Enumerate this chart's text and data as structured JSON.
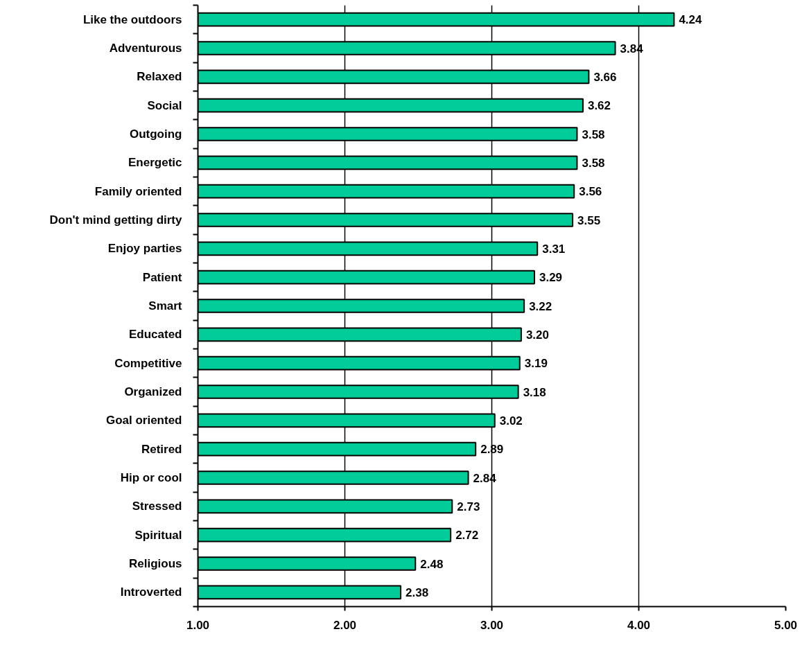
{
  "chart_data": {
    "type": "bar",
    "orientation": "horizontal",
    "categories": [
      "Like the outdoors",
      "Adventurous",
      "Relaxed",
      "Social",
      "Outgoing",
      "Energetic",
      "Family oriented",
      "Don't mind getting dirty",
      "Enjoy parties",
      "Patient",
      "Smart",
      "Educated",
      "Competitive",
      "Organized",
      "Goal oriented",
      "Retired",
      "Hip or cool",
      "Stressed",
      "Spiritual",
      "Religious",
      "Introverted"
    ],
    "values": [
      4.24,
      3.84,
      3.66,
      3.62,
      3.58,
      3.58,
      3.56,
      3.55,
      3.31,
      3.29,
      3.22,
      3.2,
      3.19,
      3.18,
      3.02,
      2.89,
      2.84,
      2.73,
      2.72,
      2.48,
      2.38
    ],
    "value_labels": [
      "4.24",
      "3.84",
      "3.66",
      "3.62",
      "3.58",
      "3.58",
      "3.56",
      "3.55",
      "3.31",
      "3.29",
      "3.22",
      "3.20",
      "3.19",
      "3.18",
      "3.02",
      "2.89",
      "2.84",
      "2.73",
      "2.72",
      "2.48",
      "2.38"
    ],
    "color": "#00cc99",
    "xlim": [
      1,
      5
    ],
    "xticks": [
      {
        "value": 1,
        "label": "1.00"
      },
      {
        "value": 2,
        "label": "2.00"
      },
      {
        "value": 3,
        "label": "3.00"
      },
      {
        "value": 4,
        "label": "4.00"
      },
      {
        "value": 5,
        "label": "5.00"
      }
    ],
    "grid": "x"
  }
}
